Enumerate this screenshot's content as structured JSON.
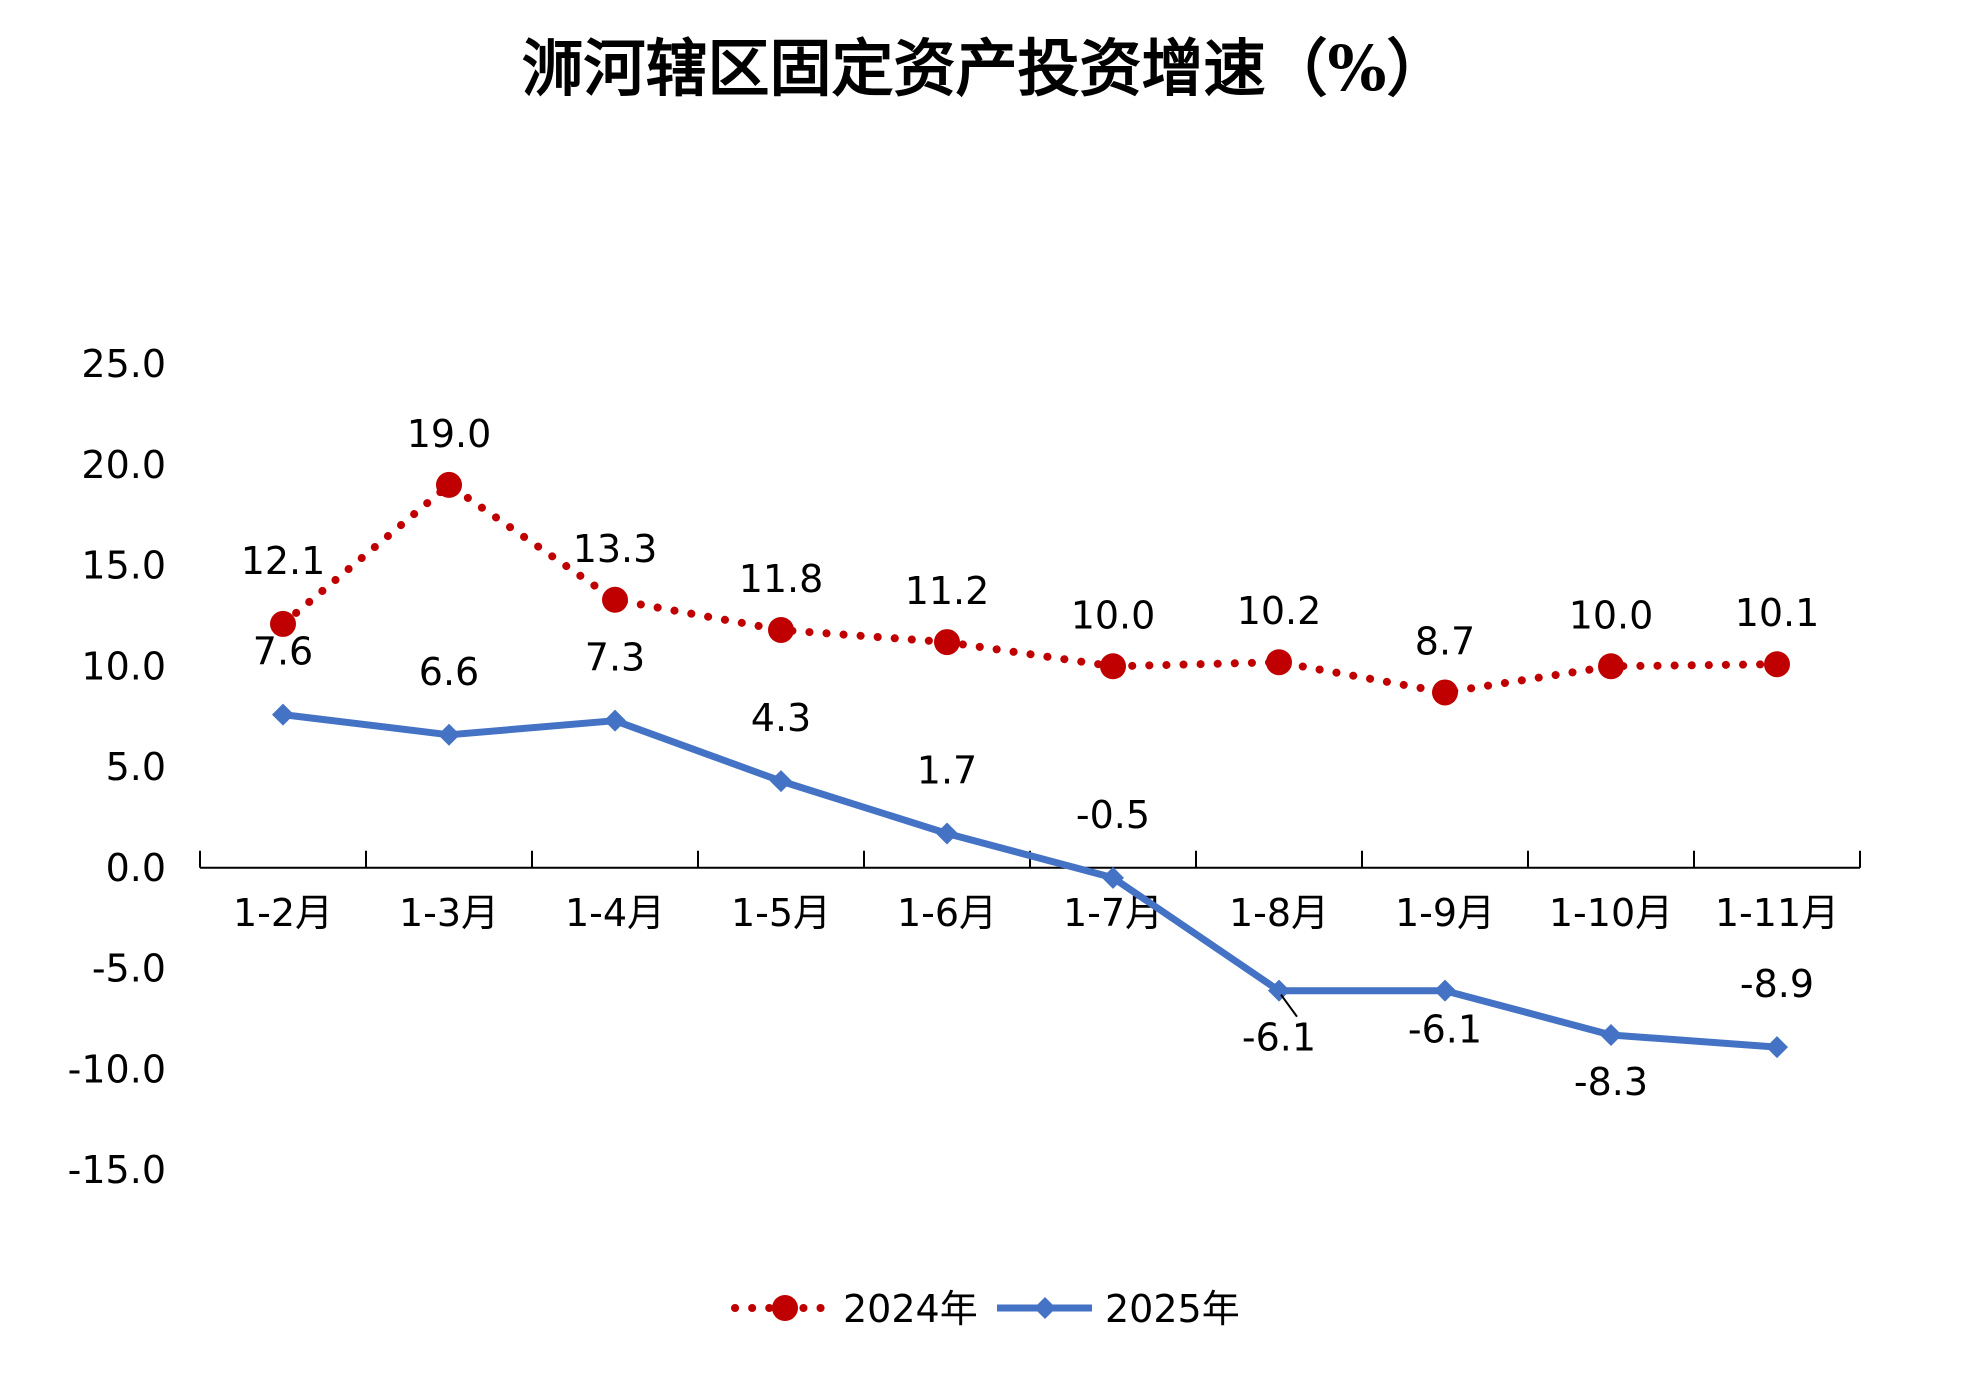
{
  "chart_data": {
    "type": "line",
    "title": "浉河辖区固定资产投资增速（%）",
    "categories": [
      "1-2月",
      "1-3月",
      "1-4月",
      "1-5月",
      "1-6月",
      "1-7月",
      "1-8月",
      "1-9月",
      "1-10月",
      "1-11月"
    ],
    "y_ticks": [
      "25.0",
      "20.0",
      "15.0",
      "10.0",
      "5.0",
      "0.0",
      "-5.0",
      "-10.0",
      "-15.0"
    ],
    "ylim": [
      -15,
      25
    ],
    "grid": false,
    "legend_position": "bottom",
    "series": [
      {
        "name": "2024年",
        "values": [
          12.1,
          19.0,
          13.3,
          11.8,
          11.2,
          10.0,
          10.2,
          8.7,
          10.0,
          10.1
        ],
        "labels": [
          "12.1",
          "19.0",
          "13.3",
          "11.8",
          "11.2",
          "10.0",
          "10.2",
          "8.7",
          "10.0",
          "10.1"
        ],
        "color": "#C00000",
        "line_style": "dotted",
        "marker": "circle"
      },
      {
        "name": "2025年",
        "values": [
          7.6,
          6.6,
          7.3,
          4.3,
          1.7,
          -0.5,
          -6.1,
          -6.1,
          -8.3,
          -8.9
        ],
        "labels": [
          "7.6",
          "6.6",
          "7.3",
          "4.3",
          "1.7",
          "-0.5",
          "-6.1",
          "-6.1",
          "-8.3",
          "-8.9"
        ],
        "color": "#4472C4",
        "line_style": "solid",
        "marker": "diamond"
      }
    ]
  }
}
